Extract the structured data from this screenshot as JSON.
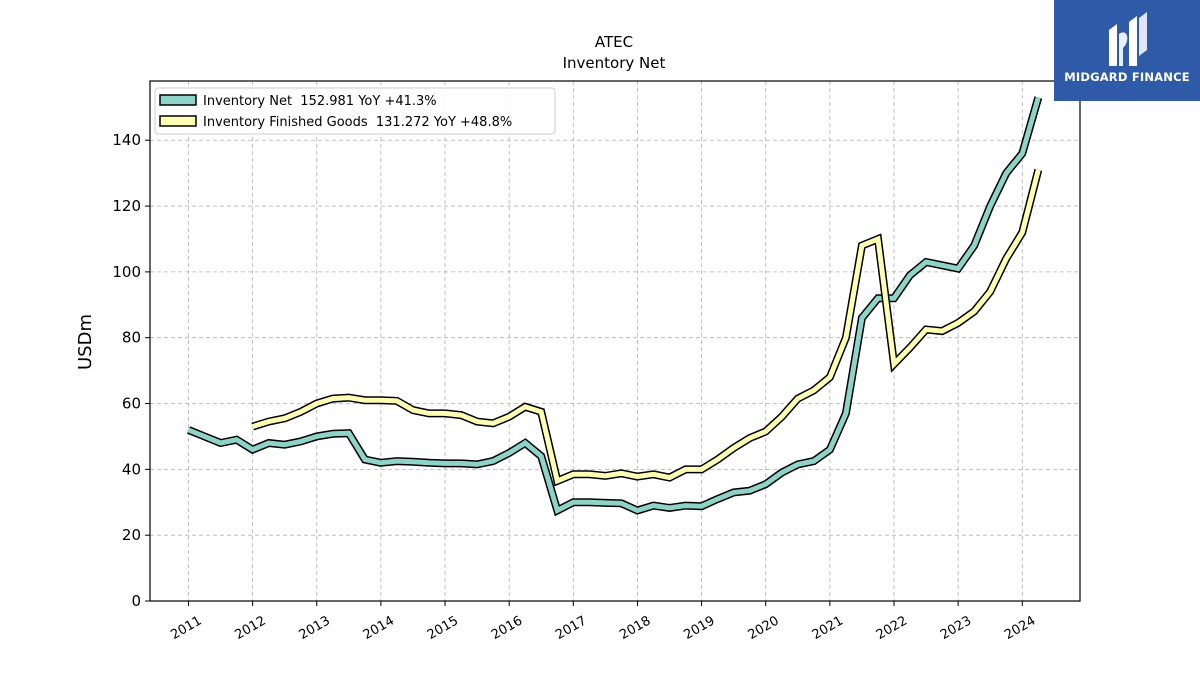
{
  "brand": {
    "name": "MIDGARD FINANCE",
    "background": "#2f5aa8"
  },
  "chart_data": {
    "type": "line",
    "title": "ATEC",
    "subtitle": "Inventory Net",
    "ylabel": "USDm",
    "xlabel": "",
    "ylim": [
      0,
      158
    ],
    "xlim": [
      2010.4,
      2024.9
    ],
    "yticks": [
      0,
      20,
      40,
      60,
      80,
      100,
      120,
      140
    ],
    "xticks": [
      2011,
      2012,
      2013,
      2014,
      2015,
      2016,
      2017,
      2018,
      2019,
      2020,
      2021,
      2022,
      2023,
      2024
    ],
    "xtick_labels": [
      "2011",
      "2012",
      "2013",
      "2014",
      "2015",
      "2016",
      "2017",
      "2018",
      "2019",
      "2020",
      "2021",
      "2022",
      "2023",
      "2024"
    ],
    "grid": true,
    "legend_position": "top-left",
    "series": [
      {
        "name": "Inventory Net",
        "legend_label": "Inventory Net  152.981 YoY +41.3%",
        "color": "#8dd3c7",
        "x": [
          2011.0,
          2011.25,
          2011.5,
          2011.75,
          2012.0,
          2012.25,
          2012.5,
          2012.75,
          2013.0,
          2013.25,
          2013.5,
          2013.75,
          2014.0,
          2014.25,
          2014.5,
          2014.75,
          2015.0,
          2015.25,
          2015.5,
          2015.75,
          2016.0,
          2016.25,
          2016.5,
          2016.75,
          2017.0,
          2017.25,
          2017.5,
          2017.75,
          2018.0,
          2018.25,
          2018.5,
          2018.75,
          2019.0,
          2019.25,
          2019.5,
          2019.75,
          2020.0,
          2020.25,
          2020.5,
          2020.75,
          2021.0,
          2021.25,
          2021.5,
          2021.75,
          2022.0,
          2022.25,
          2022.5,
          2022.75,
          2023.0,
          2023.25,
          2023.5,
          2023.75,
          2024.0,
          2024.25
        ],
        "values": [
          52.0,
          50.0,
          48.0,
          49.0,
          46.0,
          48.0,
          47.5,
          48.5,
          50.0,
          50.8,
          51.0,
          43.0,
          42.0,
          42.5,
          42.3,
          42.0,
          41.8,
          41.8,
          41.5,
          42.5,
          45.0,
          48.0,
          44.0,
          27.5,
          30.0,
          30.0,
          29.8,
          29.7,
          27.5,
          29.0,
          28.3,
          29.0,
          28.8,
          31.0,
          33.0,
          33.5,
          35.5,
          39.0,
          41.5,
          42.5,
          46.0,
          57.0,
          86.0,
          92.0,
          92.0,
          99.0,
          103.0,
          102.0,
          101.0,
          108.0,
          120.0,
          130.0,
          136.0,
          153.0
        ]
      },
      {
        "name": "Inventory Finished Goods",
        "legend_label": "Inventory Finished Goods  131.272 YoY +48.8%",
        "color": "#ffffb3",
        "x": [
          2012.0,
          2012.25,
          2012.5,
          2012.75,
          2013.0,
          2013.25,
          2013.5,
          2013.75,
          2014.0,
          2014.25,
          2014.5,
          2014.75,
          2015.0,
          2015.25,
          2015.5,
          2015.75,
          2016.0,
          2016.25,
          2016.5,
          2016.75,
          2017.0,
          2017.25,
          2017.5,
          2017.75,
          2018.0,
          2018.25,
          2018.5,
          2018.75,
          2019.0,
          2019.25,
          2019.5,
          2019.75,
          2020.0,
          2020.25,
          2020.5,
          2020.75,
          2021.0,
          2021.25,
          2021.5,
          2021.75,
          2022.0,
          2022.25,
          2022.5,
          2022.75,
          2023.0,
          2023.25,
          2023.5,
          2023.75,
          2024.0,
          2024.25
        ],
        "values": [
          53.0,
          54.5,
          55.5,
          57.5,
          60.0,
          61.5,
          61.8,
          61.0,
          61.0,
          60.8,
          58.0,
          57.0,
          57.0,
          56.5,
          54.5,
          54.0,
          56.0,
          59.0,
          57.5,
          36.5,
          38.5,
          38.5,
          38.0,
          38.8,
          37.8,
          38.5,
          37.5,
          40.0,
          40.0,
          43.0,
          46.5,
          49.5,
          51.5,
          56.0,
          61.5,
          64.0,
          68.0,
          80.0,
          108.0,
          110.0,
          72.0,
          77.0,
          82.5,
          82.0,
          84.5,
          88.0,
          94.0,
          104.0,
          112.0,
          131.0
        ]
      }
    ]
  }
}
